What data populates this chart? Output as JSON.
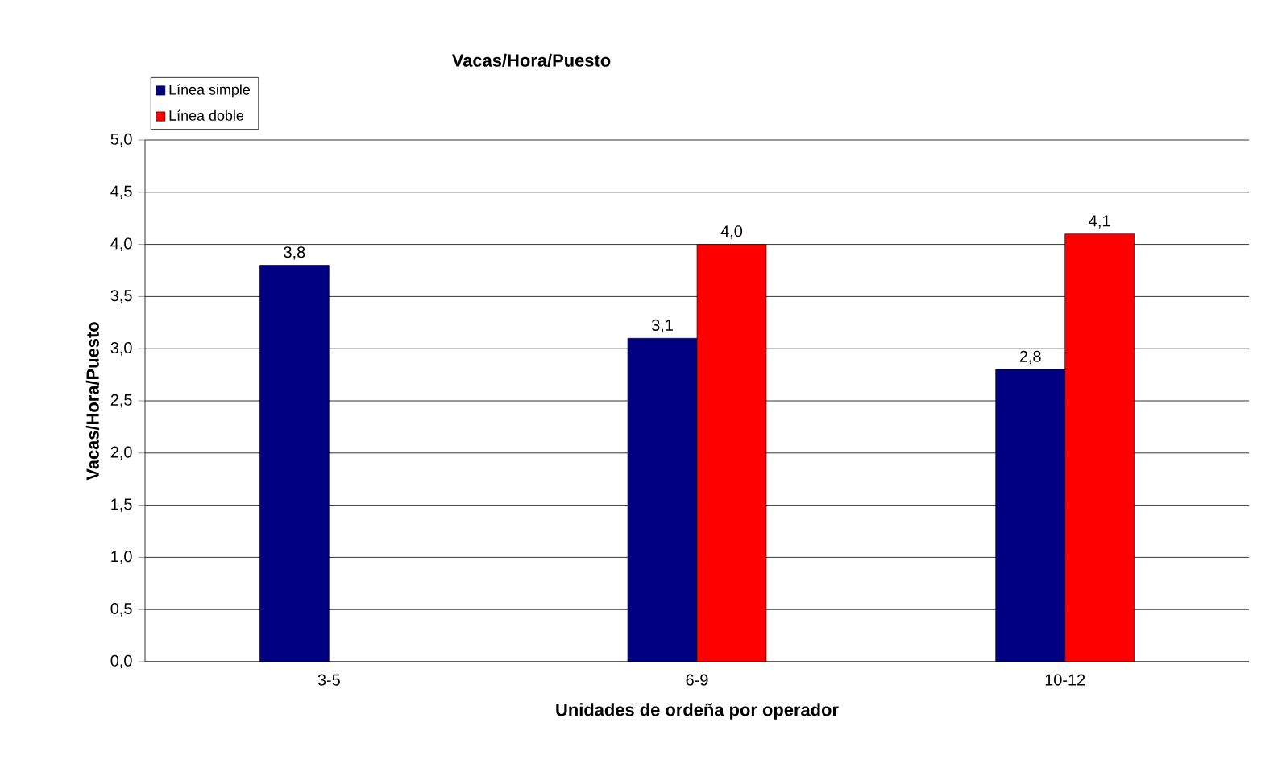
{
  "chart_data": {
    "type": "bar",
    "title": "Vacas/Hora/Puesto",
    "xlabel": "Unidades de ordeña por operador",
    "ylabel": "Vacas/Hora/Puesto",
    "categories": [
      "3-5",
      "6-9",
      "10-12"
    ],
    "series": [
      {
        "name": "Línea simple",
        "color": "#000080",
        "values": [
          3.8,
          3.1,
          2.8
        ],
        "value_labels": [
          "3,8",
          "3,1",
          "2,8"
        ]
      },
      {
        "name": "Línea doble",
        "color": "#ff0000",
        "values": [
          null,
          4.0,
          4.1
        ],
        "value_labels": [
          null,
          "4,0",
          "4,1"
        ]
      }
    ],
    "ylim": [
      0,
      5
    ],
    "yticks": [
      {
        "value": 0,
        "label": "0,0"
      },
      {
        "value": 0.5,
        "label": "0,5"
      },
      {
        "value": 1,
        "label": "1,0"
      },
      {
        "value": 1.5,
        "label": "1,5"
      },
      {
        "value": 2,
        "label": "2,0"
      },
      {
        "value": 2.5,
        "label": "2,5"
      },
      {
        "value": 3,
        "label": "3,0"
      },
      {
        "value": 3.5,
        "label": "3,5"
      },
      {
        "value": 4,
        "label": "4,0"
      },
      {
        "value": 4.5,
        "label": "4,5"
      },
      {
        "value": 5,
        "label": "5,0"
      }
    ],
    "grid": "y",
    "legend": "top left"
  }
}
